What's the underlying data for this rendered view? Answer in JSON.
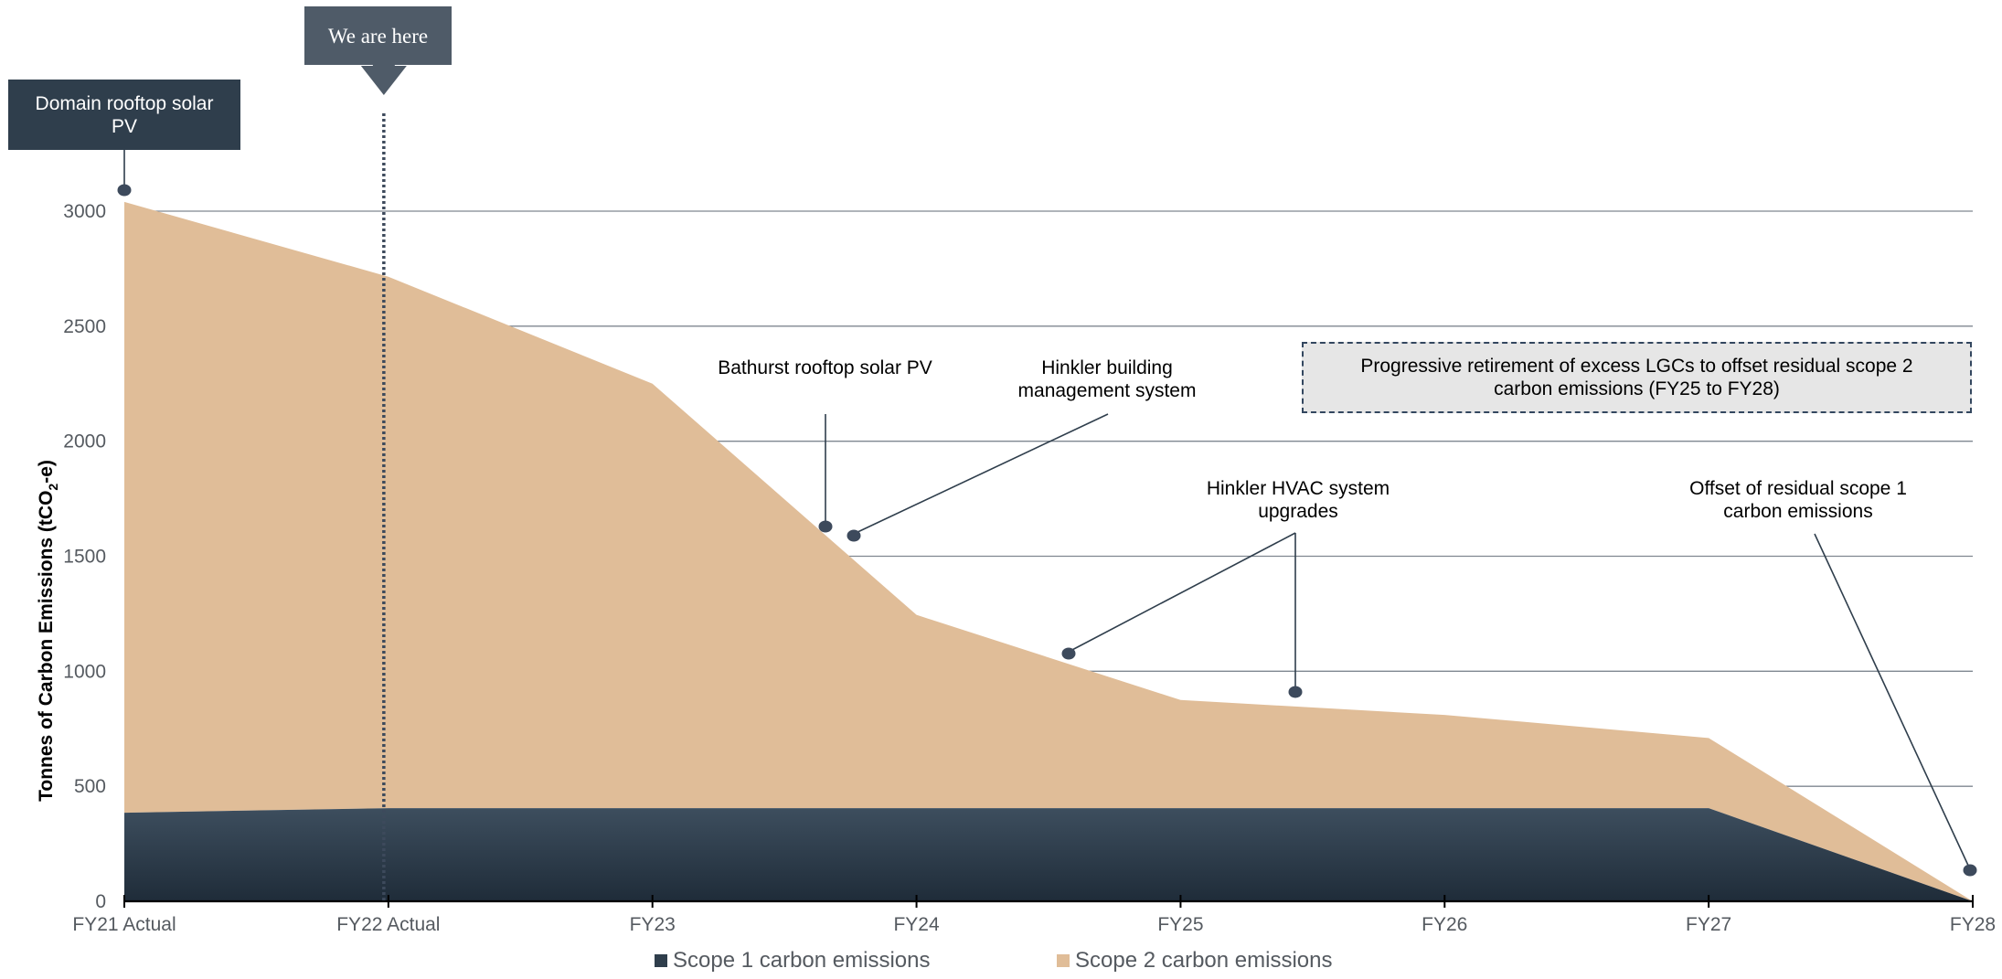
{
  "chart_data": {
    "type": "area",
    "stacked": true,
    "categories": [
      "FY21 Actual",
      "FY22 Actual",
      "FY23",
      "FY24",
      "FY25",
      "FY26",
      "FY27",
      "FY28"
    ],
    "series": [
      {
        "name": "Scope 1 carbon emissions",
        "values": [
          385,
          405,
          405,
          405,
          405,
          405,
          405,
          0
        ],
        "color": "#2f3e4c"
      },
      {
        "name": "Scope 2 carbon emissions",
        "values": [
          2655,
          2310,
          1845,
          840,
          470,
          405,
          305,
          0
        ],
        "color": "#e0bd98"
      }
    ],
    "ylabel": "Tonnes of Carbon Emissions (tCO2-e)",
    "ylabel_parts": {
      "main": "Tonnes of Carbon Emissions (tCO",
      "sub": "2",
      "tail": "-e)"
    },
    "ylim": [
      0,
      3000
    ],
    "yticks": [
      "0",
      "500",
      "1000",
      "1500",
      "2000",
      "2500",
      "3000"
    ],
    "grid": true,
    "legend": "bottom",
    "marker_position": "FY22 Actual"
  },
  "callouts": {
    "domain": "Domain rooftop solar PV",
    "here": "We are here",
    "lgc": "Progressive retirement of excess LGCs to offset residual scope 2 carbon emissions (FY25 to FY28)"
  },
  "annotations": {
    "bathurst": "Bathurst rooftop solar PV",
    "hinkler_bms": "Hinkler building management system",
    "hvac": "Hinkler HVAC system upgrades",
    "scope1_offset": "Offset of residual scope 1 carbon emissions"
  },
  "legend": {
    "scope1": "Scope 1 carbon emissions",
    "scope2": "Scope 2 carbon emissions"
  },
  "colors": {
    "scope1": "#2f3e4c",
    "scope2": "#e0bd98",
    "grid": "#7f8790",
    "marker": "#3d4a5c"
  }
}
